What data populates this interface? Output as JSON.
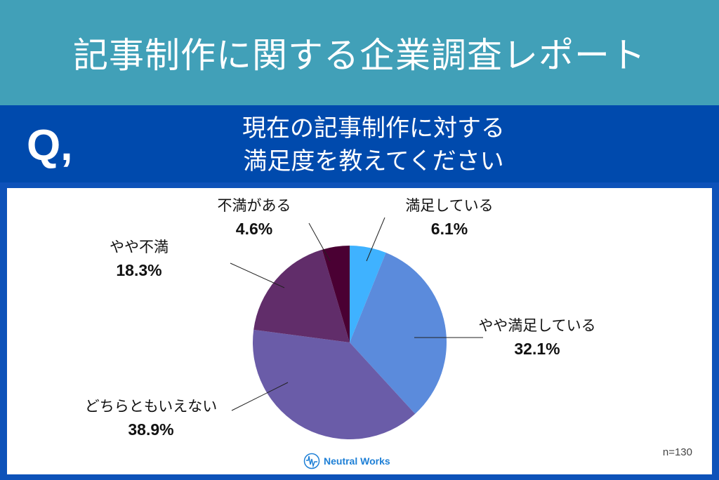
{
  "header": {
    "title": "記事制作に関する企業調査レポート"
  },
  "question": {
    "mark": "Q,",
    "line1": "現在の記事制作に対する",
    "line2": "満足度を教えてください"
  },
  "chart_data": {
    "type": "pie",
    "categories": [
      "満足している",
      "やや満足している",
      "どちらともいえない",
      "やや不満",
      "不満がある"
    ],
    "values": [
      6.1,
      32.1,
      38.9,
      18.3,
      4.6
    ],
    "labels": [
      "6.1%",
      "32.1%",
      "38.9%",
      "18.3%",
      "4.6%"
    ],
    "colors": [
      "#3fb2ff",
      "#5b8bdc",
      "#6a5ca8",
      "#612d6a",
      "#4a0033"
    ],
    "start": "top",
    "direction": "clockwise"
  },
  "footer": {
    "sample": "n=130",
    "brand": "Neutral Works"
  }
}
